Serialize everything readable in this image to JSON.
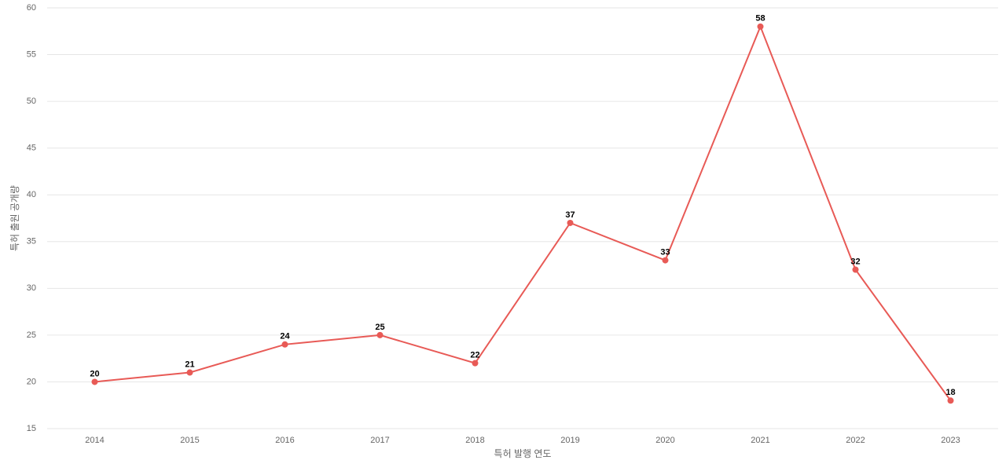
{
  "chart_data": {
    "type": "line",
    "x_label": "특허 발행 연도",
    "y_label": "특허 출원 공개량",
    "categories": [
      "2014",
      "2015",
      "2016",
      "2017",
      "2018",
      "2019",
      "2020",
      "2021",
      "2022",
      "2023"
    ],
    "values": [
      20,
      21,
      24,
      25,
      22,
      37,
      33,
      58,
      32,
      18
    ],
    "color": "#e85a56",
    "ylim": [
      15,
      60
    ],
    "yticks": [
      15,
      20,
      25,
      30,
      35,
      40,
      45,
      50,
      55,
      60
    ],
    "grid": true
  }
}
